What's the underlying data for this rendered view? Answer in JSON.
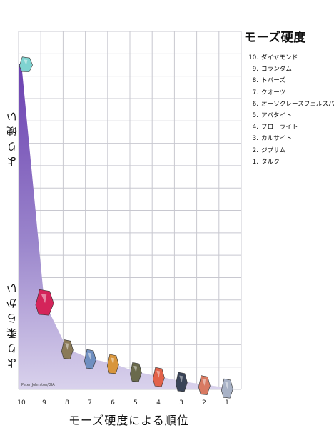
{
  "chart_data": {
    "type": "area",
    "title": "モーズ硬度",
    "xlabel": "モーズ硬度による順位",
    "ylabel_top": "より硬い",
    "ylabel_bottom": "より柔らかい",
    "credit": "Peter Johnston/GIA",
    "categories": [
      "10",
      "9",
      "8",
      "7",
      "6",
      "5",
      "4",
      "3",
      "2",
      "1"
    ],
    "values": [
      100,
      27,
      12.5,
      9.5,
      8,
      5.5,
      4,
      2.5,
      1.5,
      0.5
    ],
    "ylim": [
      0,
      110
    ],
    "grid": true,
    "legend": [
      {
        "num": "10.",
        "name": "ダイヤモンド"
      },
      {
        "num": "9.",
        "name": "コランダム"
      },
      {
        "num": "8.",
        "name": "トパーズ"
      },
      {
        "num": "7.",
        "name": "クオーツ"
      },
      {
        "num": "6.",
        "name": "オーソクレースフェルスパー"
      },
      {
        "num": "5.",
        "name": "アパタイト"
      },
      {
        "num": "4.",
        "name": "フローライト"
      },
      {
        "num": "3.",
        "name": "カルサイト"
      },
      {
        "num": "2.",
        "name": "ジプサム"
      },
      {
        "num": "1.",
        "name": "タルク"
      }
    ],
    "gem_colors": [
      "#7fd3d0",
      "#d4245a",
      "#8a7a58",
      "#6f8fc0",
      "#d8953c",
      "#6a6a4c",
      "#e2624a",
      "#3a4458",
      "#d87a62",
      "#a8b2c6"
    ]
  }
}
